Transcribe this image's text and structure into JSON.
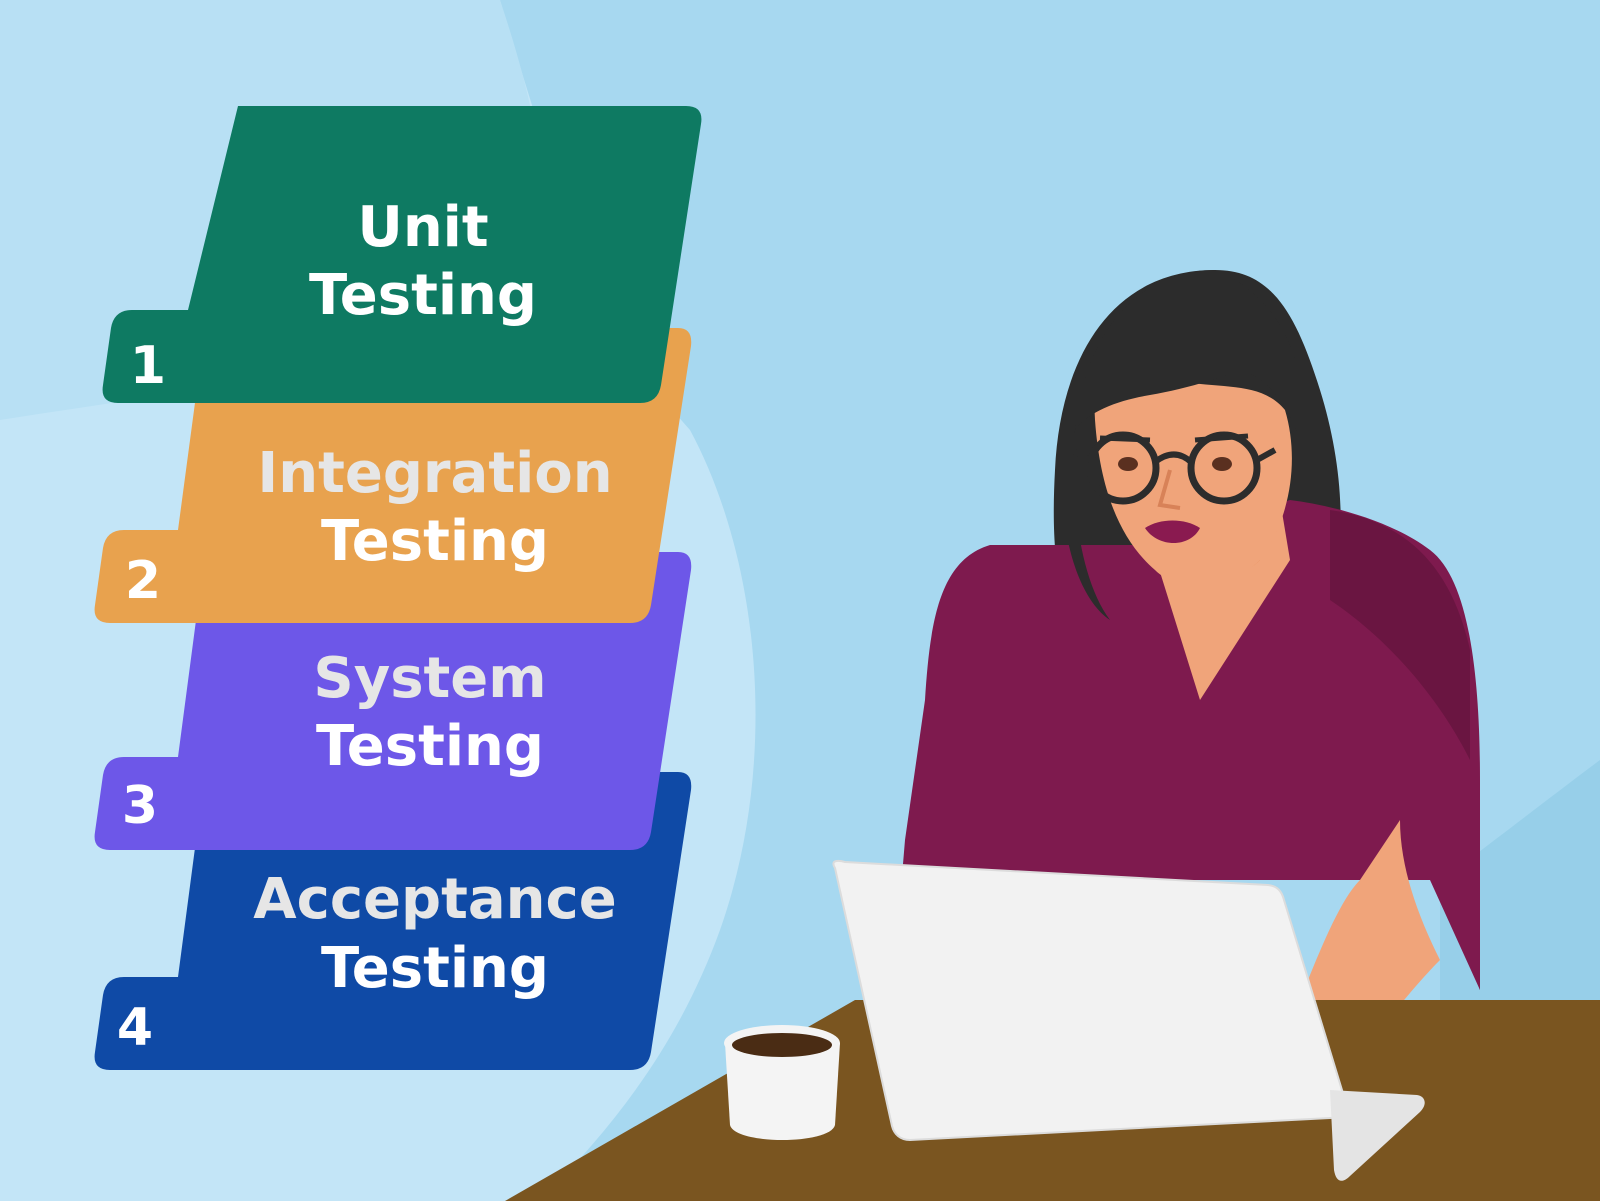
{
  "colors": {
    "background": "#a7d8f0",
    "background_light": "#c8e8f8",
    "step1": "#0e7a62",
    "step2": "#e8a24e",
    "step3": "#6d57e8",
    "step4": "#0f4aa6",
    "label_white": "#ffffff",
    "label_faded": "#e6e6e6",
    "shirt": "#7e1a4e",
    "skin": "#f0a47a",
    "hair": "#2c2c2c",
    "desk": "#7a5520",
    "laptop": "#f2f2f2"
  },
  "steps": [
    {
      "number": "1",
      "line1": "Unit",
      "line2": "Testing"
    },
    {
      "number": "2",
      "line1": "Integration",
      "line2": "Testing"
    },
    {
      "number": "3",
      "line1": "System",
      "line2": "Testing"
    },
    {
      "number": "4",
      "line1": "Acceptance",
      "line2": "Testing"
    }
  ]
}
